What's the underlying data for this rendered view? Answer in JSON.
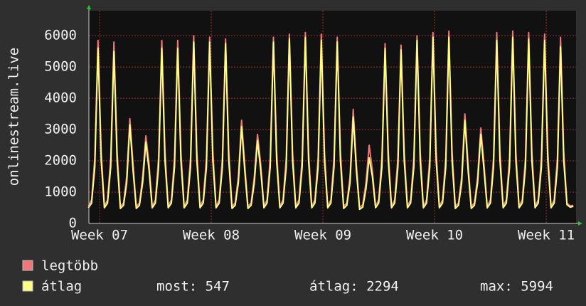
{
  "chart_data": {
    "type": "line",
    "ylabel": "onlinestream.live",
    "xlim": [
      -0.67,
      29.87
    ],
    "xticks": [
      {
        "value": 0,
        "label": "Week 07"
      },
      {
        "value": 7,
        "label": "Week 08"
      },
      {
        "value": 14,
        "label": "Week 09"
      },
      {
        "value": 21,
        "label": "Week 10"
      },
      {
        "value": 28,
        "label": "Week 11"
      }
    ],
    "ylim": [
      0,
      6800
    ],
    "yticks": [
      0,
      1000,
      2000,
      3000,
      4000,
      5000,
      6000
    ],
    "grid": true,
    "x": [
      -0.7,
      -0.5,
      -0.3,
      -0.1,
      0.1,
      0.3,
      0.5,
      0.7,
      0.9,
      1.1,
      1.3,
      1.5,
      1.7,
      1.9,
      2.1,
      2.3,
      2.5,
      2.7,
      2.9,
      3.1,
      3.3,
      3.5,
      3.7,
      3.9,
      4.1,
      4.3,
      4.5,
      4.7,
      4.9,
      5.1,
      5.3,
      5.5,
      5.7,
      5.9,
      6.1,
      6.3,
      6.5,
      6.7,
      6.9,
      7.1,
      7.3,
      7.5,
      7.7,
      7.9,
      8.1,
      8.3,
      8.5,
      8.7,
      8.9,
      9.1,
      9.3,
      9.5,
      9.7,
      9.9,
      10.1,
      10.3,
      10.5,
      10.7,
      10.9,
      11.1,
      11.3,
      11.5,
      11.7,
      11.9,
      12.1,
      12.3,
      12.5,
      12.7,
      12.9,
      13.1,
      13.3,
      13.5,
      13.7,
      13.9,
      14.1,
      14.3,
      14.5,
      14.7,
      14.9,
      15.1,
      15.3,
      15.5,
      15.7,
      15.9,
      16.1,
      16.3,
      16.5,
      16.7,
      16.9,
      17.1,
      17.3,
      17.5,
      17.7,
      17.9,
      18.1,
      18.3,
      18.5,
      18.7,
      18.9,
      19.1,
      19.3,
      19.5,
      19.7,
      19.9,
      20.1,
      20.3,
      20.5,
      20.7,
      20.9,
      21.1,
      21.3,
      21.5,
      21.7,
      21.9,
      22.1,
      22.3,
      22.5,
      22.7,
      22.9,
      23.1,
      23.3,
      23.5,
      23.7,
      23.9,
      24.1,
      24.3,
      24.5,
      24.7,
      24.9,
      25.1,
      25.3,
      25.5,
      25.7,
      25.9,
      26.1,
      26.3,
      26.5,
      26.7,
      26.9,
      27.1,
      27.3,
      27.5,
      27.7,
      27.9,
      28.1,
      28.3,
      28.5,
      28.7,
      28.9,
      29.1,
      29.3,
      29.5,
      29.7
    ],
    "series": [
      {
        "name": "legtöbb",
        "color": "#f07878",
        "values": [
          550,
          750,
          2100,
          5850,
          2300,
          550,
          750,
          2100,
          5800,
          2300,
          550,
          650,
          1500,
          3350,
          1900,
          550,
          650,
          1500,
          2800,
          1900,
          550,
          750,
          2100,
          5850,
          2300,
          550,
          750,
          2100,
          5850,
          2300,
          550,
          750,
          2100,
          6000,
          2300,
          550,
          750,
          2100,
          5950,
          2300,
          550,
          750,
          2100,
          5900,
          2300,
          550,
          650,
          1500,
          3300,
          1900,
          550,
          650,
          1500,
          2850,
          1900,
          550,
          750,
          2100,
          5950,
          2300,
          550,
          750,
          2100,
          6050,
          2300,
          550,
          750,
          2100,
          6100,
          2300,
          550,
          750,
          2100,
          6050,
          2300,
          550,
          750,
          2100,
          5950,
          2300,
          550,
          650,
          1500,
          3650,
          1900,
          500,
          600,
          1300,
          2500,
          1700,
          550,
          750,
          2100,
          5750,
          2300,
          550,
          750,
          2100,
          5700,
          2300,
          550,
          750,
          2100,
          6000,
          2300,
          550,
          750,
          2100,
          6100,
          2300,
          550,
          750,
          2100,
          6150,
          2300,
          550,
          650,
          1500,
          3500,
          1900,
          550,
          650,
          1500,
          3050,
          1900,
          550,
          750,
          2100,
          6100,
          2300,
          550,
          750,
          2100,
          6150,
          2300,
          550,
          750,
          2100,
          6100,
          2300,
          550,
          750,
          2100,
          6050,
          2300,
          550,
          750,
          2100,
          5950,
          2300,
          650,
          560,
          580
        ]
      },
      {
        "name": "átlag",
        "color": "#ffff88",
        "values": [
          500,
          650,
          1800,
          5600,
          2000,
          500,
          650,
          1800,
          5500,
          2000,
          480,
          580,
          1300,
          3150,
          1700,
          480,
          580,
          1300,
          2600,
          1700,
          500,
          650,
          1800,
          5600,
          2000,
          500,
          650,
          1800,
          5600,
          2000,
          500,
          650,
          1800,
          5800,
          2000,
          500,
          650,
          1800,
          5800,
          2000,
          500,
          650,
          1800,
          5750,
          2000,
          480,
          580,
          1300,
          3100,
          1700,
          480,
          580,
          1300,
          2650,
          1700,
          500,
          650,
          1800,
          5800,
          2000,
          500,
          650,
          1800,
          5900,
          2000,
          500,
          650,
          1800,
          5950,
          2000,
          500,
          650,
          1800,
          5850,
          2000,
          500,
          650,
          1800,
          5800,
          2000,
          480,
          580,
          1300,
          3400,
          1700,
          450,
          520,
          1100,
          2100,
          1500,
          500,
          650,
          1800,
          5600,
          2000,
          500,
          650,
          1800,
          5550,
          2000,
          500,
          650,
          1800,
          5850,
          2000,
          500,
          650,
          1800,
          5950,
          2000,
          500,
          650,
          1800,
          5950,
          2000,
          480,
          580,
          1300,
          3300,
          1700,
          480,
          580,
          1300,
          2850,
          1700,
          500,
          650,
          1800,
          5850,
          2000,
          500,
          650,
          1800,
          5950,
          2000,
          500,
          650,
          1800,
          5900,
          2000,
          500,
          650,
          1800,
          5850,
          2000,
          500,
          650,
          1800,
          5650,
          2000,
          600,
          520,
          547
        ]
      }
    ],
    "stats": [
      "most: 547",
      "átlag: 2294",
      "max: 5994"
    ]
  }
}
